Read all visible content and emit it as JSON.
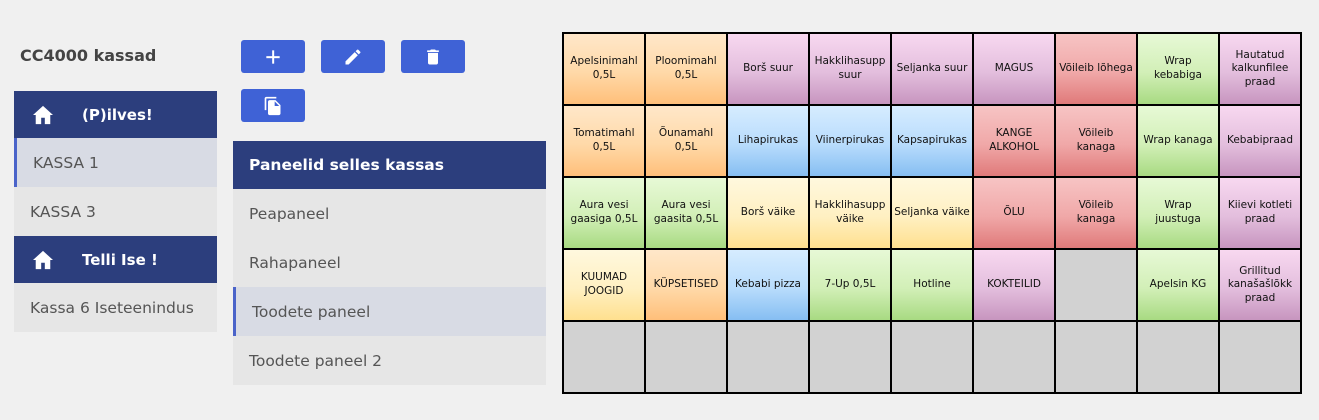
{
  "title": "CC4000 kassad",
  "sidebar": {
    "groups": [
      {
        "label": "(P)ilves!",
        "items": [
          {
            "label": "KASSA 1",
            "active": true
          },
          {
            "label": "KASSA 3",
            "active": false
          }
        ]
      },
      {
        "label": "Telli Ise !",
        "items": [
          {
            "label": "Kassa 6 Iseteenindus",
            "active": false
          }
        ]
      }
    ]
  },
  "toolbar": {
    "icons": [
      "plus-icon",
      "pencil-icon",
      "trash-icon",
      "copy-icon"
    ]
  },
  "panels": {
    "header": "Paneelid selles kassas",
    "items": [
      {
        "label": "Peapaneel",
        "active": false
      },
      {
        "label": "Rahapaneel",
        "active": false
      },
      {
        "label": "Toodete paneel",
        "active": true
      },
      {
        "label": "Toodete paneel 2",
        "active": false
      }
    ]
  },
  "grid": {
    "colors": {
      "orange": "#ffd9a8",
      "purple": "#e3bedd",
      "red": "#f0a8a8",
      "green": "#d2efb7",
      "blue": "#b8dcfc",
      "yellow": "#fff0c2",
      "gray": "#d2d2d2"
    },
    "cells": [
      {
        "label": "Apelsinimahl 0,5L",
        "color": "orange"
      },
      {
        "label": "Ploomimahl 0,5L",
        "color": "orange"
      },
      {
        "label": "Borš suur",
        "color": "purple"
      },
      {
        "label": "Hakklihasupp suur",
        "color": "purple"
      },
      {
        "label": "Seljanka suur",
        "color": "purple"
      },
      {
        "label": "MAGUS",
        "color": "purple"
      },
      {
        "label": "Võileib lõhega",
        "color": "red"
      },
      {
        "label": "Wrap kebabiga",
        "color": "green"
      },
      {
        "label": "Hautatud kalkunfilee praad",
        "color": "purple"
      },
      {
        "label": "Tomatimahl 0,5L",
        "color": "orange"
      },
      {
        "label": "Õunamahl 0,5L",
        "color": "orange"
      },
      {
        "label": "Lihapirukas",
        "color": "blue"
      },
      {
        "label": "Viinerpirukas",
        "color": "blue"
      },
      {
        "label": "Kapsapirukas",
        "color": "blue"
      },
      {
        "label": "KANGE ALKOHOL",
        "color": "red"
      },
      {
        "label": "Võileib kanaga",
        "color": "red"
      },
      {
        "label": "Wrap kanaga",
        "color": "green"
      },
      {
        "label": "Kebabipraad",
        "color": "purple"
      },
      {
        "label": "Aura vesi gaasiga 0,5L",
        "color": "green"
      },
      {
        "label": "Aura vesi gaasita 0,5L",
        "color": "green"
      },
      {
        "label": "Borš väike",
        "color": "yellow"
      },
      {
        "label": "Hakklihasupp väike",
        "color": "yellow"
      },
      {
        "label": "Seljanka väike",
        "color": "yellow"
      },
      {
        "label": "ÕLU",
        "color": "red"
      },
      {
        "label": "Võileib kanaga",
        "color": "red"
      },
      {
        "label": "Wrap juustuga",
        "color": "green"
      },
      {
        "label": "Kiievi kotleti praad",
        "color": "purple"
      },
      {
        "label": "KUUMAD JOOGID",
        "color": "yellow"
      },
      {
        "label": "KÜPSETISED",
        "color": "orange"
      },
      {
        "label": "Kebabi pizza",
        "color": "blue"
      },
      {
        "label": "7-Up 0,5L",
        "color": "green"
      },
      {
        "label": "Hotline",
        "color": "green"
      },
      {
        "label": "KOKTEILID",
        "color": "purple"
      },
      {
        "label": "",
        "color": "gray"
      },
      {
        "label": "Apelsin KG",
        "color": "green"
      },
      {
        "label": "Grillitud kanašašlõkk praad",
        "color": "purple"
      },
      {
        "label": "",
        "color": "gray"
      },
      {
        "label": "",
        "color": "gray"
      },
      {
        "label": "",
        "color": "gray"
      },
      {
        "label": "",
        "color": "gray"
      },
      {
        "label": "",
        "color": "gray"
      },
      {
        "label": "",
        "color": "gray"
      },
      {
        "label": "",
        "color": "gray"
      },
      {
        "label": "",
        "color": "gray"
      },
      {
        "label": "",
        "color": "gray"
      }
    ]
  }
}
